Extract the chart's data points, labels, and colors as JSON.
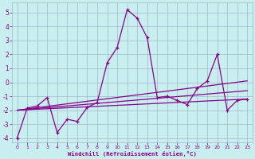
{
  "xlabel": "Windchill (Refroidissement éolien,°C)",
  "xlim": [
    -0.5,
    23.5
  ],
  "ylim": [
    -4.3,
    5.7
  ],
  "xticks": [
    0,
    1,
    2,
    3,
    4,
    5,
    6,
    7,
    8,
    9,
    10,
    11,
    12,
    13,
    14,
    15,
    16,
    17,
    18,
    19,
    20,
    21,
    22,
    23
  ],
  "yticks": [
    -4,
    -3,
    -2,
    -1,
    0,
    1,
    2,
    3,
    4,
    5
  ],
  "background_color": "#c8eef0",
  "grid_color": "#a0b8c8",
  "line_color": "#880088",
  "main_line": {
    "x": [
      0,
      1,
      2,
      3,
      4,
      5,
      6,
      7,
      8,
      9,
      10,
      11,
      12,
      13,
      14,
      15,
      16,
      17,
      18,
      19,
      20,
      21,
      22,
      23
    ],
    "y": [
      -4.0,
      -1.85,
      -1.7,
      -1.1,
      -3.6,
      -2.65,
      -2.8,
      -1.8,
      -1.45,
      1.4,
      2.5,
      5.2,
      4.6,
      3.2,
      -1.1,
      -1.0,
      -1.3,
      -1.6,
      -0.45,
      0.1,
      2.0,
      -2.0,
      -1.3,
      -1.2
    ]
  },
  "trend1": {
    "x": [
      0,
      23
    ],
    "y": [
      -2.0,
      -1.2
    ]
  },
  "trend2": {
    "x": [
      0,
      23
    ],
    "y": [
      -2.0,
      -0.6
    ]
  },
  "trend3": {
    "x": [
      0,
      23
    ],
    "y": [
      -2.0,
      0.1
    ]
  }
}
